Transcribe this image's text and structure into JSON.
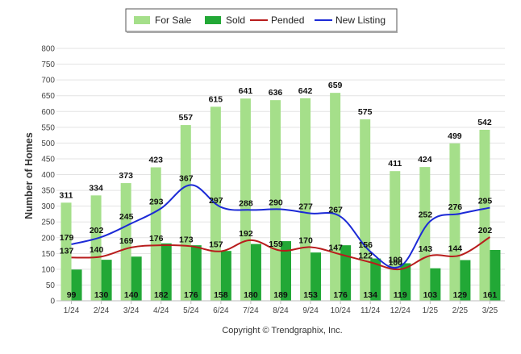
{
  "chart_data": {
    "type": "bar",
    "title": "",
    "xlabel": "",
    "ylabel": "Number of Homes",
    "ylim": [
      0,
      800
    ],
    "yticks": [
      0,
      50,
      100,
      150,
      200,
      250,
      300,
      350,
      400,
      450,
      500,
      550,
      600,
      650,
      700,
      750,
      800
    ],
    "grid": true,
    "legend_position": "top-center",
    "categories": [
      "1/24",
      "2/24",
      "3/24",
      "4/24",
      "5/24",
      "6/24",
      "7/24",
      "8/24",
      "9/24",
      "10/24",
      "11/24",
      "12/24",
      "1/25",
      "2/25",
      "3/25"
    ],
    "series": [
      {
        "name": "For Sale",
        "kind": "bar",
        "color": "#a5df8a",
        "values": [
          311,
          334,
          373,
          423,
          557,
          615,
          641,
          636,
          642,
          659,
          575,
          411,
          424,
          499,
          542
        ]
      },
      {
        "name": "Sold",
        "kind": "bar",
        "color": "#22a836",
        "values": [
          99,
          130,
          140,
          182,
          176,
          158,
          180,
          189,
          153,
          176,
          134,
          119,
          103,
          129,
          161
        ]
      },
      {
        "name": "Pended",
        "kind": "line",
        "color": "#b81c1c",
        "values": [
          137,
          140,
          169,
          176,
          173,
          157,
          192,
          159,
          170,
          147,
          122,
          100,
          143,
          144,
          202
        ]
      },
      {
        "name": "New Listing",
        "kind": "line",
        "color": "#1c2ad6",
        "values": [
          179,
          202,
          245,
          293,
          367,
          297,
          288,
          290,
          277,
          267,
          156,
          109,
          252,
          276,
          295
        ]
      }
    ],
    "credit": "Copyright © Trendgraphix, Inc."
  }
}
